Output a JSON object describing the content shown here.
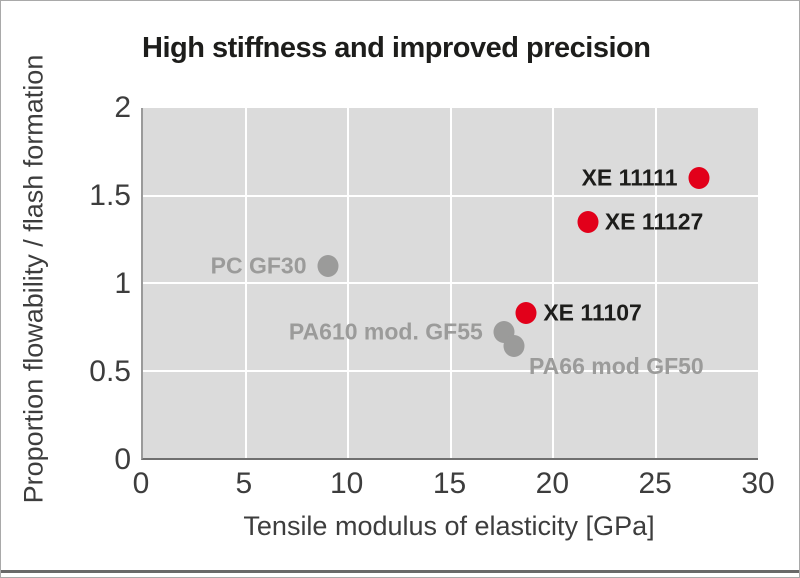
{
  "chart_data": {
    "type": "scatter",
    "title": "High stiffness and improved precision",
    "xlabel": "Tensile modulus of elasticity [GPa]",
    "ylabel": "Proportion flowability / flash formation",
    "xlim": [
      0,
      30
    ],
    "ylim": [
      0,
      2
    ],
    "xticks": [
      0,
      5,
      10,
      15,
      20,
      25,
      30
    ],
    "yticks": [
      0,
      0.5,
      1,
      1.5,
      2
    ],
    "grid": true,
    "legend": false,
    "colors": {
      "plot_bg": "#dbdbdb",
      "grid": "#ffffff",
      "axis_left": "#9a9a9a",
      "axis_bottom": "#6f6f6f",
      "tick_text": "#3d3d3d",
      "title_text": "#1d1d1b",
      "xe_dot": "#e2001a",
      "xe_label": "#1d1d1b",
      "reference_dot": "#9b9b9a",
      "reference_label": "#9b9b9a"
    },
    "points": [
      {
        "label": "PC GF30",
        "x": 9.0,
        "y": 1.1,
        "dot_color": "#9b9b9a",
        "label_color": "#9b9b9a",
        "label_side": "left"
      },
      {
        "label": "PA610 mod. GF55",
        "x": 17.6,
        "y": 0.72,
        "dot_color": "#9b9b9a",
        "label_color": "#9b9b9a",
        "label_side": "left"
      },
      {
        "label": "PA66 mod GF50",
        "x": 18.1,
        "y": 0.64,
        "dot_color": "#9b9b9a",
        "label_color": "#9b9b9a",
        "label_side": "below-right"
      },
      {
        "label": "XE 11107",
        "x": 18.7,
        "y": 0.83,
        "dot_color": "#e2001a",
        "label_color": "#1d1d1b",
        "label_side": "right"
      },
      {
        "label": "XE 11127",
        "x": 21.7,
        "y": 1.35,
        "dot_color": "#e2001a",
        "label_color": "#1d1d1b",
        "label_side": "right"
      },
      {
        "label": "XE 11111",
        "x": 27.1,
        "y": 1.6,
        "dot_color": "#e2001a",
        "label_color": "#1d1d1b",
        "label_side": "left"
      }
    ]
  }
}
